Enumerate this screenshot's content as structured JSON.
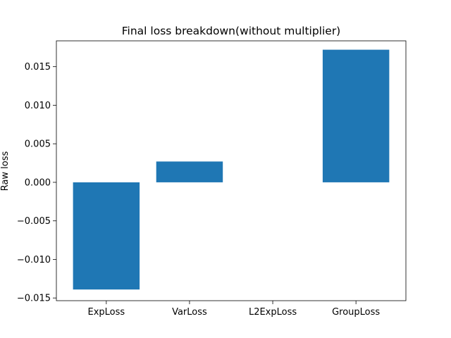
{
  "chart_data": {
    "type": "bar",
    "title": "Final loss breakdown(without multiplier)",
    "xlabel": "",
    "ylabel": "Raw loss",
    "categories": [
      "ExpLoss",
      "VarLoss",
      "L2ExpLoss",
      "GroupLoss"
    ],
    "values": [
      -0.0139,
      0.0027,
      0.0,
      0.0172
    ],
    "ylim": [
      -0.01535,
      0.01835
    ],
    "yticks": [
      -0.015,
      -0.01,
      -0.005,
      0.0,
      0.005,
      0.01,
      0.015
    ],
    "ytick_labels": [
      "−0.015",
      "−0.010",
      "−0.005",
      "0.000",
      "0.005",
      "0.010",
      "0.015"
    ],
    "grid": false,
    "legend": "none",
    "bar_color": "#1f77b4"
  }
}
